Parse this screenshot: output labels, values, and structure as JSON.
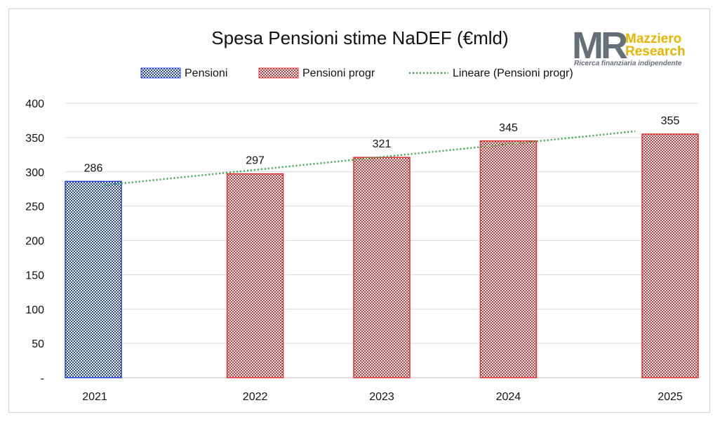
{
  "chart_data": {
    "type": "bar",
    "title": "Spesa Pensioni stime NaDEF (€mld)",
    "categories": [
      "2021",
      "2022",
      "2023",
      "2024",
      "2025"
    ],
    "series": [
      {
        "name": "Pensioni",
        "values": [
          286,
          null,
          null,
          null,
          null
        ],
        "color": "#1f3fd6"
      },
      {
        "name": "Pensioni progr",
        "values": [
          null,
          297,
          321,
          345,
          355
        ],
        "color": "#e03030"
      }
    ],
    "trendline": {
      "name": "Lineare (Pensioni progr)",
      "color": "#3aa84a",
      "start": 280,
      "end": 359
    },
    "ylim": [
      0,
      400
    ],
    "yticks": [
      "-",
      "50",
      "100",
      "150",
      "200",
      "250",
      "300",
      "350",
      "400"
    ],
    "grid": true,
    "legend": "top",
    "data_labels": [
      "286",
      "297",
      "321",
      "345",
      "355"
    ]
  },
  "logo": {
    "mark": "MR",
    "name_line1": "Mazziero",
    "name_line2": "Research",
    "tagline": "Ricerca finanziaria indipendente",
    "color_gray": "#666e78",
    "color_gold": "#e8b400"
  }
}
